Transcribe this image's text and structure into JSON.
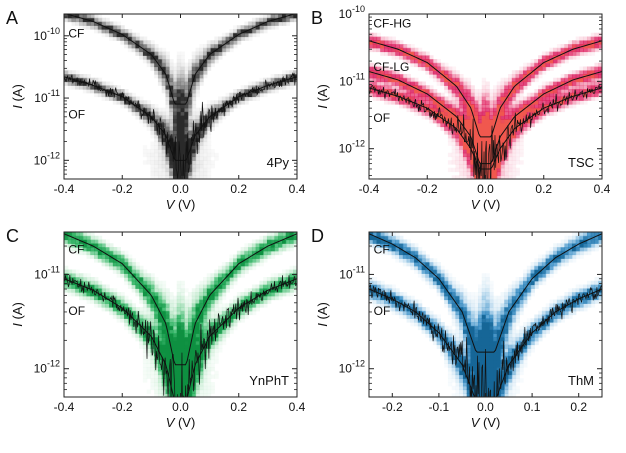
{
  "figure": {
    "background": "#ffffff"
  },
  "chart_data": [
    {
      "panel": "A",
      "type": "heatmap",
      "annotation": "4Py",
      "xlabel": "V (V)",
      "ylabel": "I (A)",
      "xlim": [
        -0.4,
        0.4
      ],
      "ylim_log10": [
        -12.3,
        -9.65
      ],
      "yscale": "log",
      "xticks": [
        -0.4,
        -0.2,
        0.0,
        0.2,
        0.4
      ],
      "xtick_labels": [
        "-0.4",
        "-0.2",
        "0.0",
        "0.2",
        "0.4"
      ],
      "yticks_log10": [
        -10,
        -11,
        -12
      ],
      "ytick_labels": [
        "10-10",
        "10-11",
        "10-12"
      ],
      "colormap": [
        "#ffffff",
        "#bdbdbd",
        "#6e6e6e",
        "#1e1e1e"
      ],
      "series": [
        {
          "name": "CF",
          "label_x": -0.385,
          "label_y_log10": -10.03,
          "peak_log10": -9.8,
          "fit_x": [
            -0.4,
            -0.3,
            -0.2,
            -0.1,
            -0.05,
            -0.02,
            0.02,
            0.05,
            0.1,
            0.2,
            0.3,
            0.4
          ],
          "fit_y": [
            2.3e-10,
            1.7e-10,
            1.05e-10,
            5e-11,
            2.4e-11,
            8e-12,
            8e-12,
            2.4e-11,
            5e-11,
            1.05e-10,
            1.7e-10,
            2.3e-10
          ]
        },
        {
          "name": "OF",
          "label_x": -0.385,
          "label_y_log10": -11.33,
          "peak_log10": -10.6,
          "fit_x": [
            -0.4,
            -0.3,
            -0.2,
            -0.1,
            -0.05,
            -0.02,
            0.02,
            0.05,
            0.1,
            0.2,
            0.3,
            0.4
          ],
          "fit_y": [
            2.2e-11,
            1.6e-11,
            1.05e-11,
            5e-12,
            2.5e-12,
            1e-12,
            1e-12,
            2.5e-12,
            5e-12,
            1.05e-11,
            1.6e-11,
            2.2e-11
          ]
        }
      ]
    },
    {
      "panel": "B",
      "type": "heatmap",
      "annotation": "TSC",
      "xlabel": "V (V)",
      "ylabel": "I (A)",
      "xlim": [
        -0.4,
        0.4
      ],
      "ylim_log10": [
        -12.45,
        -10.0
      ],
      "yscale": "log",
      "xticks": [
        -0.4,
        -0.2,
        0.0,
        0.2,
        0.4
      ],
      "xtick_labels": [
        "-0.4",
        "-0.2",
        "0.0",
        "0.2",
        "0.4"
      ],
      "yticks_log10": [
        -10,
        -11,
        -12
      ],
      "ytick_labels": [
        "10-10",
        "10-11",
        "10-12"
      ],
      "colormap": [
        "#ffffff",
        "#f4a0b8",
        "#e01a5a",
        "#d81b5e",
        "#f6674a"
      ],
      "series": [
        {
          "name": "CF-HG",
          "label_x": -0.385,
          "label_y_log10": -10.2,
          "peak_log10": -10.0,
          "fit_x": [
            -0.4,
            -0.3,
            -0.2,
            -0.1,
            -0.05,
            -0.02,
            0.02,
            0.05,
            0.1,
            0.2,
            0.3,
            0.4
          ],
          "fit_y": [
            4e-11,
            3e-11,
            1.9e-11,
            8.5e-12,
            4e-12,
            1.5e-12,
            1.5e-12,
            4e-12,
            8.5e-12,
            1.9e-11,
            3e-11,
            4e-11
          ]
        },
        {
          "name": "CF-LG",
          "label_x": -0.385,
          "label_y_log10": -10.85,
          "peak_log10": -10.55,
          "fit_x": [
            -0.4,
            -0.3,
            -0.2,
            -0.1,
            -0.05,
            -0.02,
            0.02,
            0.05,
            0.1,
            0.2,
            0.3,
            0.4
          ],
          "fit_y": [
            1.4e-11,
            1.05e-11,
            6.5e-12,
            3e-12,
            1.5e-12,
            6e-13,
            6e-13,
            1.5e-12,
            3e-12,
            6.5e-12,
            1.05e-11,
            1.4e-11
          ]
        },
        {
          "name": "OF",
          "label_x": -0.385,
          "label_y_log10": -11.6,
          "peak_log10": -11.05,
          "fit_x": [
            -0.4,
            -0.3,
            -0.2,
            -0.1,
            -0.05,
            -0.02,
            0.02,
            0.05,
            0.1,
            0.2,
            0.3,
            0.4
          ],
          "fit_y": [
            8e-12,
            6e-12,
            4e-12,
            2e-12,
            1e-12,
            5e-13,
            5e-13,
            1e-12,
            2e-12,
            4e-12,
            6e-12,
            8e-12
          ]
        }
      ]
    },
    {
      "panel": "C",
      "type": "heatmap",
      "annotation": "YnPhT",
      "xlabel": "V (V)",
      "ylabel": "I (A)",
      "xlim": [
        -0.4,
        0.4
      ],
      "ylim_log10": [
        -12.3,
        -10.55
      ],
      "yscale": "log",
      "xticks": [
        -0.4,
        -0.2,
        0.0,
        0.2,
        0.4
      ],
      "xtick_labels": [
        "-0.4",
        "-0.2",
        "0.0",
        "0.2",
        "0.4"
      ],
      "yticks_log10": [
        -11,
        -12
      ],
      "ytick_labels": [
        "10-11",
        "10-12"
      ],
      "colormap": [
        "#ffffff",
        "#a3dfb5",
        "#22b05a",
        "#0a8a3c"
      ],
      "series": [
        {
          "name": "CF",
          "label_x": -0.385,
          "label_y_log10": -10.78,
          "peak_log10": -10.6,
          "fit_x": [
            -0.4,
            -0.3,
            -0.2,
            -0.1,
            -0.05,
            -0.02,
            0.02,
            0.05,
            0.1,
            0.2,
            0.3,
            0.4
          ],
          "fit_y": [
            2.7e-11,
            2e-11,
            1.3e-11,
            6e-12,
            3e-12,
            1.1e-12,
            1.1e-12,
            3e-12,
            6e-12,
            1.3e-11,
            2e-11,
            2.7e-11
          ]
        },
        {
          "name": "OF",
          "label_x": -0.385,
          "label_y_log10": -11.43,
          "peak_log10": -11.05,
          "fit_x": [
            -0.4,
            -0.3,
            -0.2,
            -0.1,
            -0.05,
            -0.02,
            0.02,
            0.05,
            0.1,
            0.2,
            0.3,
            0.4
          ],
          "fit_y": [
            9e-12,
            6.8e-12,
            4.4e-12,
            2.2e-12,
            1.1e-12,
            4.5e-13,
            4.5e-13,
            1.1e-12,
            2.2e-12,
            4.4e-12,
            6.8e-12,
            9e-12
          ]
        }
      ]
    },
    {
      "panel": "D",
      "type": "heatmap",
      "annotation": "ThM",
      "xlabel": "V (V)",
      "ylabel": "I (A)",
      "xlim": [
        -0.25,
        0.25
      ],
      "ylim_log10": [
        -12.3,
        -10.55
      ],
      "yscale": "log",
      "xticks": [
        -0.2,
        -0.1,
        0.0,
        0.1,
        0.2
      ],
      "xtick_labels": [
        "-0.2",
        "-0.1",
        "0.0",
        "0.1",
        "0.2"
      ],
      "yticks_log10": [
        -11,
        -12
      ],
      "ytick_labels": [
        "10-11",
        "10-12"
      ],
      "colormap": [
        "#ffffff",
        "#a9d1ea",
        "#2f89c4",
        "#11608f"
      ],
      "series": [
        {
          "name": "CF",
          "label_x": -0.24,
          "label_y_log10": -10.78,
          "peak_log10": -10.6,
          "fit_x": [
            -0.25,
            -0.2,
            -0.15,
            -0.1,
            -0.05,
            -0.02,
            0.02,
            0.05,
            0.1,
            0.15,
            0.2,
            0.25
          ],
          "fit_y": [
            2.7e-11,
            2.1e-11,
            1.5e-11,
            9e-12,
            4e-12,
            1.5e-12,
            1.5e-12,
            4e-12,
            9e-12,
            1.5e-11,
            2.1e-11,
            2.7e-11
          ]
        },
        {
          "name": "OF",
          "label_x": -0.24,
          "label_y_log10": -11.43,
          "peak_log10": -10.9,
          "fit_x": [
            -0.25,
            -0.2,
            -0.15,
            -0.1,
            -0.05,
            -0.02,
            0.02,
            0.05,
            0.1,
            0.15,
            0.2,
            0.25
          ],
          "fit_y": [
            7e-12,
            5.5e-12,
            4e-12,
            2.4e-12,
            1.1e-12,
            4.5e-13,
            4.5e-13,
            1.1e-12,
            2.4e-12,
            4e-12,
            5.5e-12,
            7e-12
          ]
        }
      ]
    }
  ]
}
